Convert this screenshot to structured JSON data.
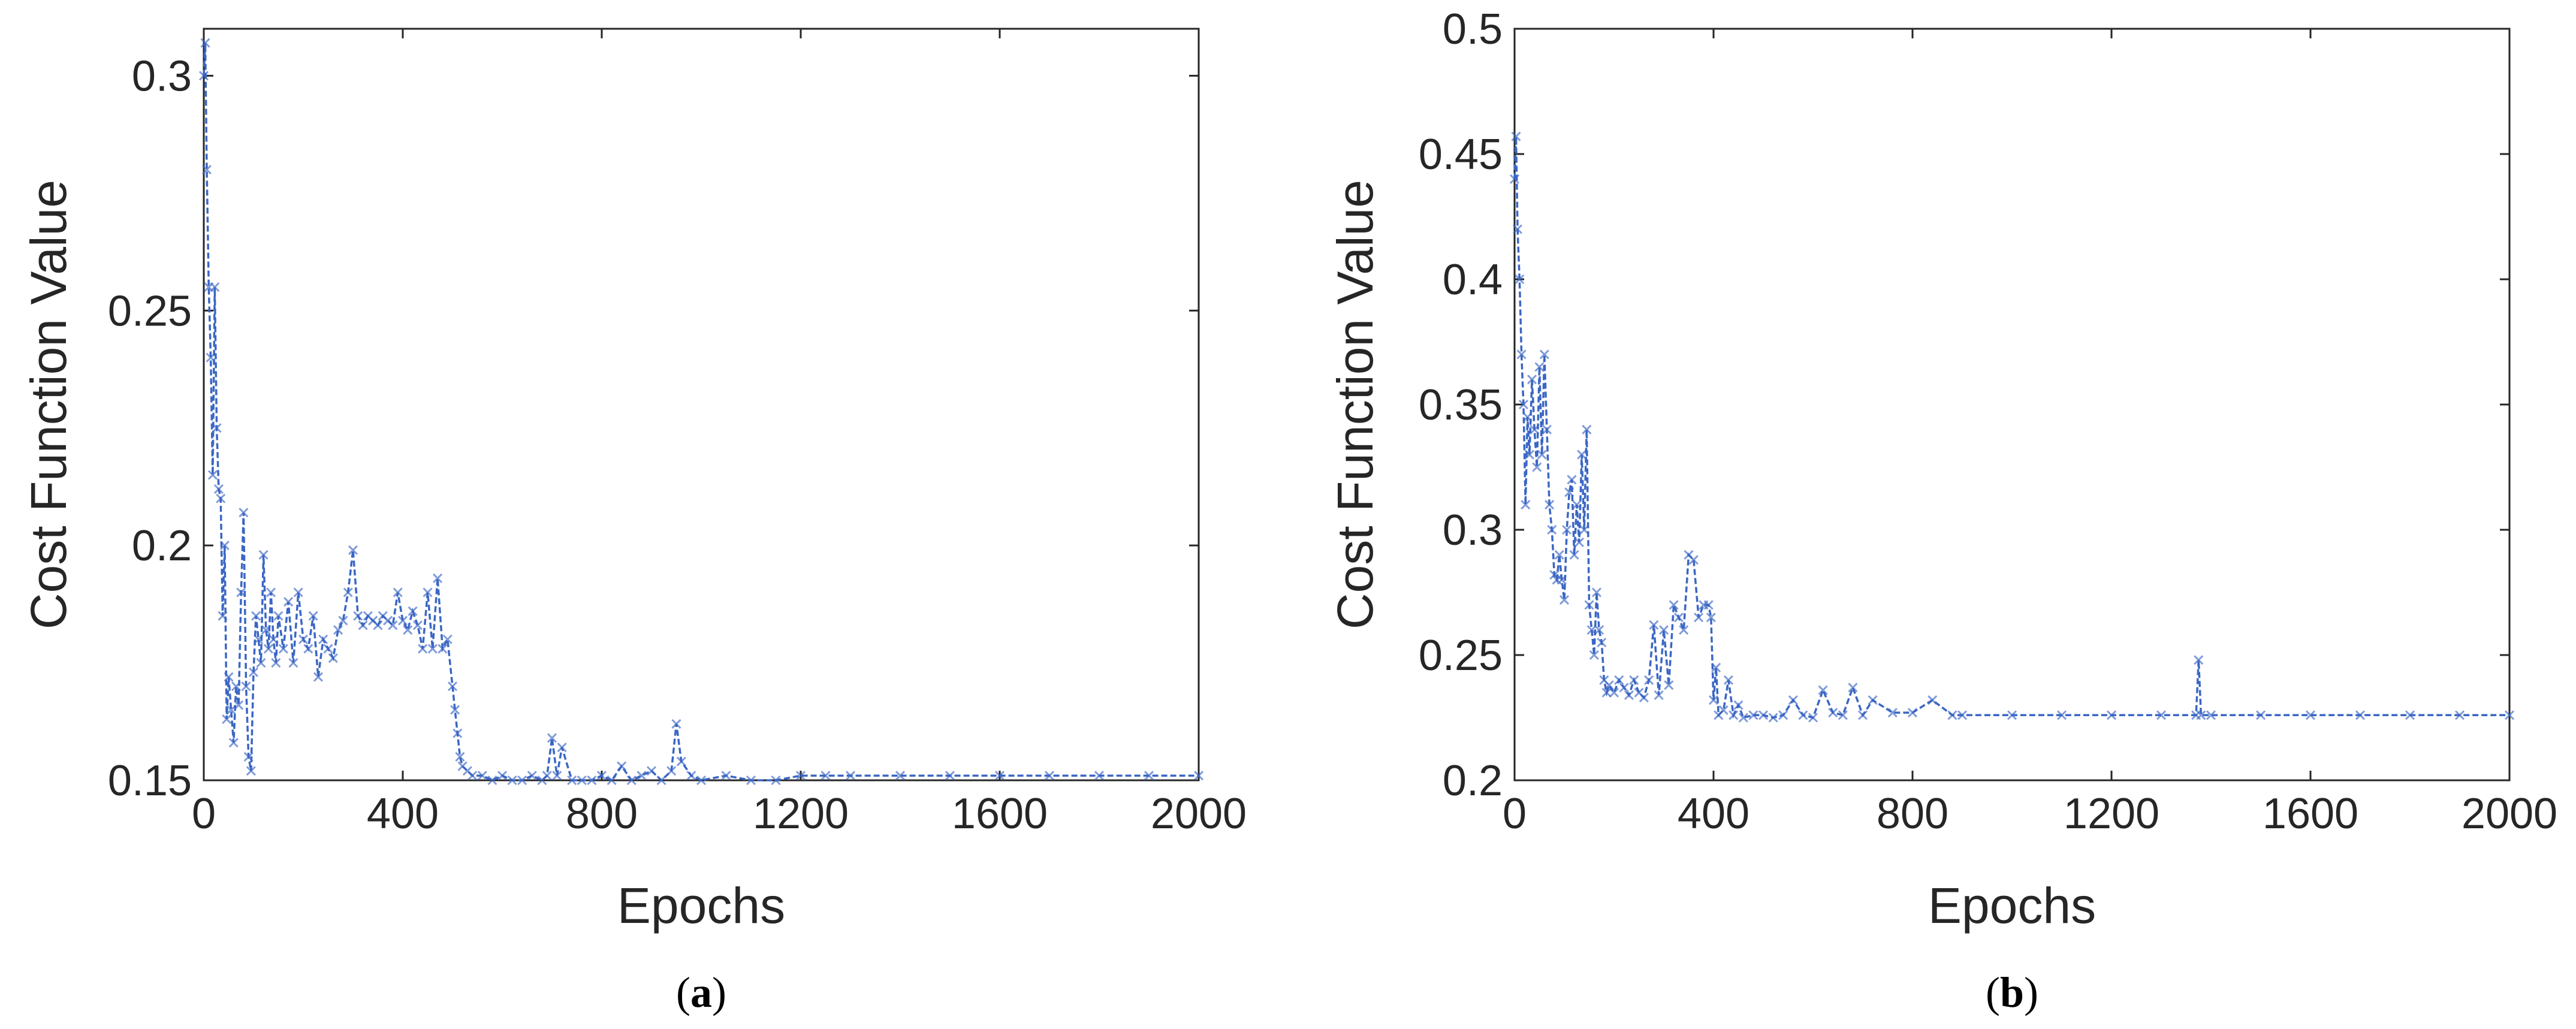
{
  "chart_data": [
    {
      "type": "line",
      "caption": {
        "open": "(",
        "letter": "a",
        "close": ")"
      },
      "xlabel": "Epochs",
      "ylabel": "Cost Function Value",
      "xlim": [
        0,
        2000
      ],
      "ylim": [
        0.15,
        0.31
      ],
      "xticks": [
        0,
        400,
        800,
        1200,
        1600,
        2000
      ],
      "yticks": [
        0.15,
        0.2,
        0.25,
        0.3
      ],
      "ytick_labels": [
        "0.15",
        "0.2",
        "0.25",
        "0.3"
      ],
      "grid": false,
      "line_color": "#3a66c4",
      "marker": "x",
      "series": [
        {
          "x": [
            0,
            3,
            6,
            10,
            14,
            18,
            22,
            26,
            30,
            34,
            38,
            42,
            46,
            50,
            55,
            60,
            65,
            70,
            75,
            80,
            85,
            90,
            95,
            100,
            105,
            110,
            115,
            120,
            125,
            130,
            135,
            140,
            145,
            150,
            160,
            170,
            180,
            190,
            200,
            210,
            220,
            230,
            240,
            250,
            260,
            270,
            280,
            290,
            300,
            310,
            320,
            330,
            340,
            350,
            360,
            370,
            380,
            390,
            400,
            410,
            420,
            430,
            440,
            450,
            460,
            470,
            480,
            490,
            500,
            505,
            510,
            515,
            520,
            530,
            540,
            560,
            580,
            600,
            620,
            640,
            660,
            680,
            690,
            700,
            710,
            720,
            740,
            760,
            780,
            800,
            820,
            840,
            860,
            880,
            900,
            920,
            940,
            950,
            960,
            980,
            1000,
            1050,
            1100,
            1150,
            1200,
            1250,
            1300,
            1400,
            1500,
            1600,
            1700,
            1800,
            1900,
            2000
          ],
          "y": [
            0.3,
            0.307,
            0.28,
            0.255,
            0.24,
            0.215,
            0.255,
            0.225,
            0.212,
            0.21,
            0.185,
            0.2,
            0.163,
            0.172,
            0.165,
            0.158,
            0.17,
            0.166,
            0.19,
            0.207,
            0.17,
            0.155,
            0.152,
            0.173,
            0.185,
            0.18,
            0.175,
            0.198,
            0.182,
            0.178,
            0.19,
            0.18,
            0.175,
            0.185,
            0.178,
            0.188,
            0.175,
            0.19,
            0.18,
            0.178,
            0.185,
            0.172,
            0.18,
            0.178,
            0.176,
            0.182,
            0.184,
            0.19,
            0.199,
            0.185,
            0.183,
            0.185,
            0.184,
            0.183,
            0.185,
            0.184,
            0.183,
            0.19,
            0.184,
            0.182,
            0.186,
            0.183,
            0.178,
            0.19,
            0.178,
            0.193,
            0.178,
            0.18,
            0.17,
            0.165,
            0.16,
            0.155,
            0.153,
            0.152,
            0.151,
            0.151,
            0.15,
            0.151,
            0.15,
            0.15,
            0.151,
            0.15,
            0.151,
            0.159,
            0.151,
            0.157,
            0.15,
            0.15,
            0.15,
            0.151,
            0.15,
            0.153,
            0.15,
            0.151,
            0.152,
            0.15,
            0.152,
            0.162,
            0.154,
            0.151,
            0.15,
            0.151,
            0.15,
            0.15,
            0.151,
            0.151,
            0.151,
            0.151,
            0.151,
            0.151,
            0.151,
            0.151,
            0.151,
            0.151
          ]
        }
      ]
    },
    {
      "type": "line",
      "caption": {
        "open": "(",
        "letter": "b",
        "close": ")"
      },
      "xlabel": "Epochs",
      "ylabel": "Cost Function Value",
      "xlim": [
        0,
        2000
      ],
      "ylim": [
        0.2,
        0.5
      ],
      "xticks": [
        0,
        400,
        800,
        1200,
        1600,
        2000
      ],
      "yticks": [
        0.2,
        0.25,
        0.3,
        0.35,
        0.4,
        0.45,
        0.5
      ],
      "ytick_labels": [
        "0.2",
        "0.25",
        "0.3",
        "0.35",
        "0.4",
        "0.45",
        "0.5"
      ],
      "grid": false,
      "line_color": "#3a66c4",
      "marker": "x",
      "series": [
        {
          "x": [
            0,
            3,
            6,
            10,
            14,
            18,
            22,
            26,
            30,
            35,
            40,
            45,
            50,
            55,
            60,
            65,
            70,
            75,
            80,
            85,
            90,
            95,
            100,
            105,
            110,
            115,
            120,
            125,
            130,
            135,
            140,
            145,
            150,
            155,
            160,
            165,
            170,
            175,
            180,
            185,
            190,
            200,
            210,
            220,
            230,
            240,
            250,
            260,
            270,
            280,
            290,
            300,
            310,
            320,
            330,
            340,
            350,
            360,
            370,
            380,
            390,
            395,
            400,
            405,
            410,
            420,
            430,
            440,
            450,
            460,
            480,
            500,
            520,
            540,
            560,
            580,
            600,
            620,
            640,
            660,
            680,
            700,
            720,
            760,
            800,
            840,
            880,
            900,
            1000,
            1100,
            1200,
            1300,
            1370,
            1375,
            1380,
            1400,
            1500,
            1600,
            1700,
            1800,
            1900,
            2000
          ],
          "y": [
            0.44,
            0.457,
            0.42,
            0.4,
            0.37,
            0.35,
            0.31,
            0.345,
            0.33,
            0.36,
            0.34,
            0.325,
            0.365,
            0.33,
            0.37,
            0.34,
            0.31,
            0.3,
            0.282,
            0.28,
            0.29,
            0.28,
            0.272,
            0.3,
            0.315,
            0.32,
            0.29,
            0.31,
            0.295,
            0.33,
            0.3,
            0.34,
            0.27,
            0.26,
            0.25,
            0.275,
            0.26,
            0.255,
            0.24,
            0.235,
            0.238,
            0.235,
            0.24,
            0.237,
            0.234,
            0.24,
            0.235,
            0.233,
            0.24,
            0.262,
            0.234,
            0.26,
            0.238,
            0.27,
            0.265,
            0.26,
            0.29,
            0.288,
            0.265,
            0.27,
            0.27,
            0.265,
            0.232,
            0.245,
            0.226,
            0.228,
            0.24,
            0.226,
            0.23,
            0.225,
            0.226,
            0.226,
            0.225,
            0.226,
            0.232,
            0.226,
            0.225,
            0.236,
            0.227,
            0.226,
            0.237,
            0.226,
            0.232,
            0.227,
            0.227,
            0.232,
            0.226,
            0.226,
            0.226,
            0.226,
            0.226,
            0.226,
            0.226,
            0.248,
            0.226,
            0.226,
            0.226,
            0.226,
            0.226,
            0.226,
            0.226,
            0.226
          ]
        }
      ]
    }
  ]
}
